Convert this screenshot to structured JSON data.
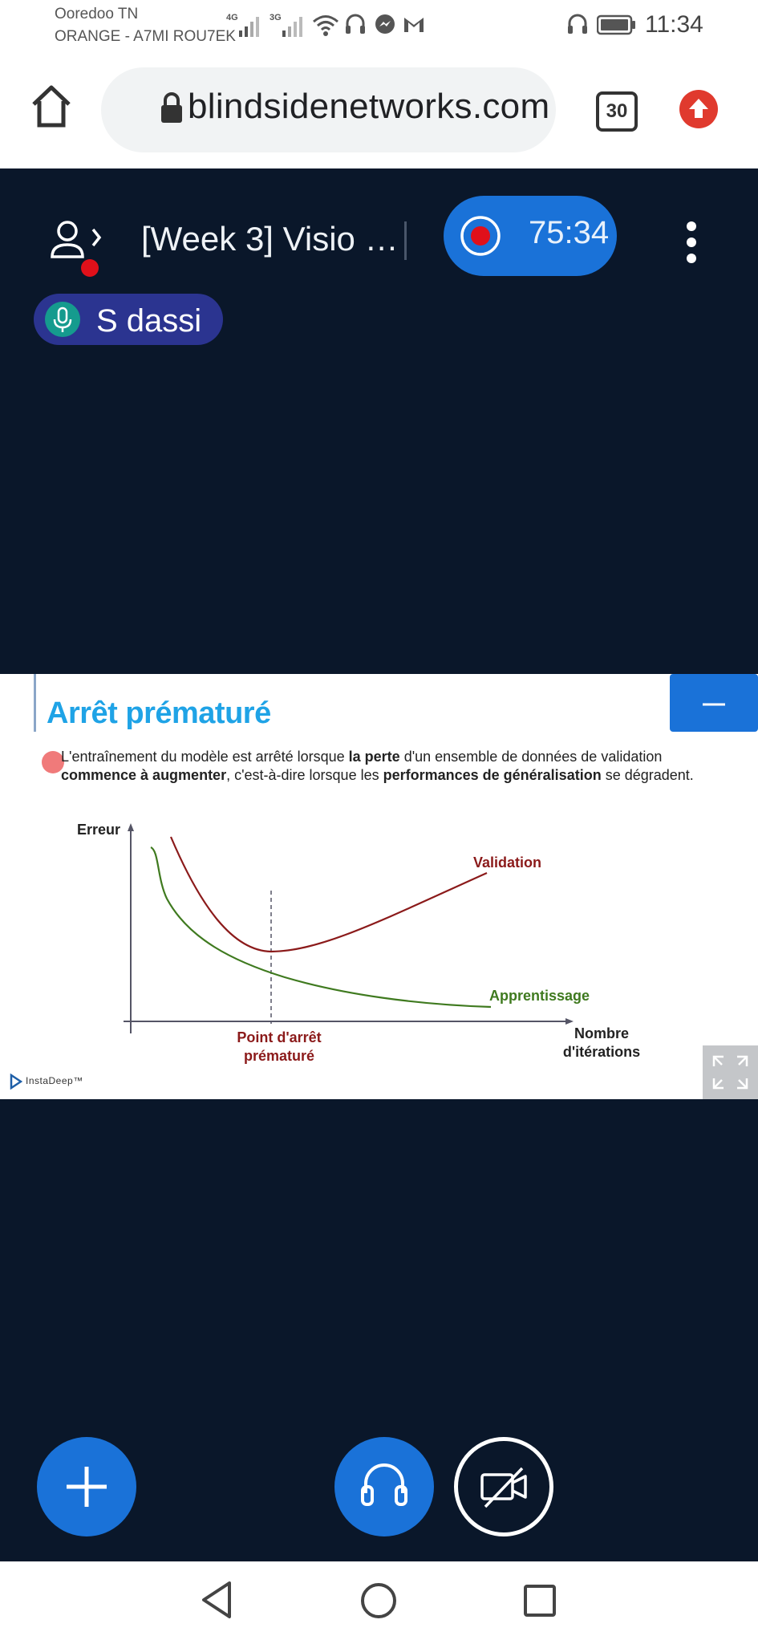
{
  "status_bar": {
    "carrier_1": "Ooredoo TN",
    "carrier_2": "ORANGE - A7MI ROU7EK",
    "network_1": "4G",
    "network_2": "3G",
    "time": "11:34"
  },
  "browser": {
    "url": "blindsidenetworks.com",
    "tab_count": "30"
  },
  "meeting": {
    "title": "[Week 3] Visio …",
    "recording_time": "75:34",
    "talker": "S dassi"
  },
  "slide": {
    "title": "Arrêt prématuré",
    "text_a": "L'entraînement du modèle est arrêté lorsque ",
    "text_b": "la perte",
    "text_c": " d'un ensemble de données de validation ",
    "text_d": "commence à augmenter",
    "text_e": ", c'est-à-dire lorsque les ",
    "text_f": "performances de généralisation",
    "text_g": " se dégradent.",
    "logo": "InstaDeep™"
  },
  "chart_data": {
    "type": "line",
    "ylabel": "Erreur",
    "xlabel_line1": "Nombre",
    "xlabel_line2": "d'itérations",
    "stop_label_line1": "Point d'arrêt",
    "stop_label_line2": "prématuré",
    "series": [
      {
        "name": "Validation",
        "color": "#8b1a1a"
      },
      {
        "name": "Apprentissage",
        "color": "#3f7a1f"
      }
    ]
  },
  "colors": {
    "app_background": "#0a172a",
    "accent_blue": "#1a72d8",
    "talker_pill": "#2b3490",
    "record_red": "#e0101a"
  }
}
